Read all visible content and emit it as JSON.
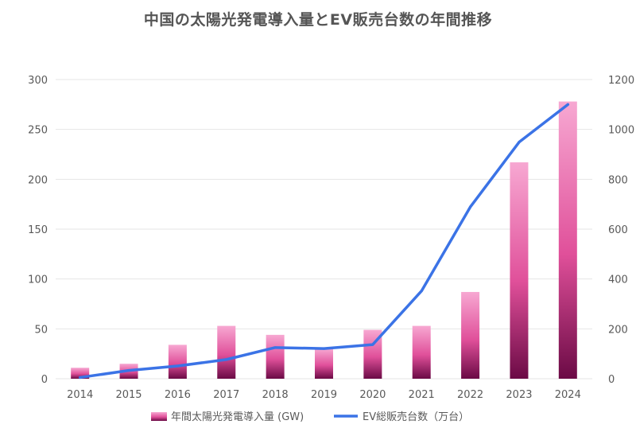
{
  "chart_data": {
    "type": "bar+line",
    "title": "中国の太陽光発電導入量とEV販売台数の年間推移",
    "categories": [
      "2014",
      "2015",
      "2016",
      "2017",
      "2018",
      "2019",
      "2020",
      "2021",
      "2022",
      "2023",
      "2024"
    ],
    "series": [
      {
        "name": "年間太陽光発電導入量 (GW)",
        "type": "bar",
        "axis": "left",
        "values": [
          11,
          15,
          34,
          53,
          44,
          30,
          49,
          53,
          87,
          217,
          278
        ]
      },
      {
        "name": "EV総販売台数（万台）",
        "type": "line",
        "axis": "right",
        "values": [
          5,
          33,
          51,
          77,
          125,
          121,
          137,
          352,
          689,
          949,
          1100
        ]
      }
    ],
    "y_left": {
      "range": [
        0,
        300
      ],
      "ticks": [
        "0",
        "50",
        "100",
        "150",
        "200",
        "250",
        "300"
      ]
    },
    "y_right": {
      "range": [
        0,
        1200
      ],
      "ticks": [
        "0",
        "200",
        "400",
        "600",
        "800",
        "1000",
        "1200"
      ]
    },
    "grid": "horizontal",
    "legend_position": "bottom",
    "colors": {
      "bar_top": "#f7a8d2",
      "bar_mid": "#e0509a",
      "bar_bottom": "#6b0a45",
      "line": "#3b73e6",
      "grid": "#e6e6e6",
      "tick_text": "#595959",
      "title_text": "#555555"
    }
  }
}
